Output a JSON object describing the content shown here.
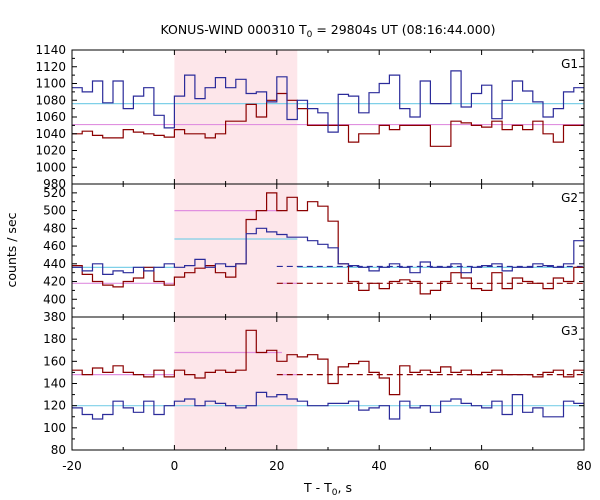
{
  "chart_data": {
    "type": "line",
    "title_main": "KONUS-WIND 000310 T",
    "title_sub": "0",
    "title_rest": " = 29804s UT (08:16:44.000)",
    "xlabel_main": "T - T",
    "xlabel_sub": "0",
    "xlabel_rest": ", s",
    "ylabel": "counts / sec",
    "xlim": [
      -20,
      80
    ],
    "xticks": [
      "-20",
      "0",
      "20",
      "40",
      "60",
      "80"
    ],
    "xtick_values": [
      -20,
      0,
      20,
      40,
      60,
      80
    ],
    "shaded_interval": [
      0,
      24
    ],
    "colors": {
      "series_a": "#2b2b9a",
      "series_b": "#8b0000",
      "fit_a": "#7fd0e8",
      "fit_b": "#e090e0",
      "shade": "#fde6ea"
    },
    "panels": [
      {
        "label": "G1",
        "ylim": [
          980,
          1140
        ],
        "yticks": [
          "980",
          "1000",
          "1020",
          "1040",
          "1060",
          "1080",
          "1100",
          "1120",
          "1140"
        ],
        "ytick_values": [
          980,
          1000,
          1020,
          1040,
          1060,
          1080,
          1100,
          1120,
          1140
        ],
        "bin_width": 2,
        "x_start": -20,
        "series_a_values": [
          1095,
          1090,
          1103,
          1077,
          1103,
          1070,
          1085,
          1095,
          1062,
          1047,
          1085,
          1110,
          1082,
          1095,
          1107,
          1095,
          1105,
          1088,
          1090,
          1078,
          1108,
          1057,
          1080,
          1070,
          1065,
          1042,
          1087,
          1085,
          1065,
          1089,
          1100,
          1110,
          1070,
          1060,
          1103,
          1076,
          1076,
          1115,
          1072,
          1088,
          1098,
          1058,
          1080,
          1103,
          1091,
          1078,
          1060,
          1070,
          1090,
          1095
        ],
        "series_b_values": [
          1040,
          1043,
          1038,
          1035,
          1035,
          1045,
          1042,
          1040,
          1038,
          1036,
          1045,
          1040,
          1040,
          1035,
          1040,
          1055,
          1055,
          1075,
          1060,
          1080,
          1088,
          1080,
          1070,
          1050,
          1050,
          1050,
          1050,
          1030,
          1040,
          1040,
          1050,
          1045,
          1050,
          1050,
          1050,
          1025,
          1025,
          1055,
          1053,
          1050,
          1048,
          1055,
          1045,
          1050,
          1045,
          1055,
          1040,
          1030,
          1050,
          1050
        ],
        "fit_a": [
          {
            "x": [
              -20,
              80
            ],
            "y": 1076
          }
        ],
        "fit_b": [
          {
            "x": [
              -20,
              80
            ],
            "y": 1051
          }
        ],
        "dashed_a": null,
        "dashed_b": null
      },
      {
        "label": "G2",
        "ylim": [
          380,
          530
        ],
        "yticks": [
          "380",
          "400",
          "420",
          "440",
          "460",
          "480",
          "500",
          "520"
        ],
        "ytick_values": [
          380,
          400,
          420,
          440,
          460,
          480,
          500,
          520
        ],
        "bin_width": 2,
        "x_start": -20,
        "series_a_values": [
          436,
          432,
          440,
          428,
          432,
          430,
          436,
          432,
          436,
          440,
          436,
          438,
          445,
          436,
          440,
          437,
          440,
          474,
          480,
          476,
          473,
          470,
          470,
          466,
          462,
          458,
          440,
          438,
          436,
          432,
          436,
          440,
          436,
          430,
          442,
          436,
          436,
          440,
          430,
          436,
          438,
          440,
          432,
          436,
          436,
          440,
          438,
          436,
          440,
          466
        ],
        "series_b_values": [
          438,
          428,
          420,
          416,
          414,
          420,
          424,
          436,
          420,
          416,
          425,
          430,
          435,
          438,
          430,
          425,
          440,
          490,
          500,
          520,
          500,
          515,
          500,
          510,
          505,
          488,
          440,
          420,
          410,
          418,
          412,
          420,
          422,
          420,
          406,
          410,
          420,
          430,
          424,
          412,
          410,
          430,
          412,
          424,
          420,
          418,
          412,
          424,
          420,
          436
        ],
        "fit_a": [
          {
            "x": [
              -20,
              0
            ],
            "y": 436
          },
          {
            "x": [
              0,
              24
            ],
            "y": 468
          },
          {
            "x": [
              24,
              80
            ],
            "y": 436
          }
        ],
        "fit_b": [
          {
            "x": [
              -20,
              0
            ],
            "y": 418
          },
          {
            "x": [
              0,
              21
            ],
            "y": 500
          },
          {
            "x": [
              21,
              24
            ],
            "y": 418
          }
        ],
        "dashed_a": {
          "x": [
            20,
            80
          ],
          "y": 437
        },
        "dashed_b": {
          "x": [
            20,
            80
          ],
          "y": 418
        }
      },
      {
        "label": "G3",
        "ylim": [
          80,
          200
        ],
        "yticks": [
          "80",
          "100",
          "120",
          "140",
          "160",
          "180"
        ],
        "ytick_values": [
          80,
          100,
          120,
          140,
          160,
          180
        ],
        "bin_width": 2,
        "x_start": -20,
        "series_a_values": [
          118,
          112,
          108,
          112,
          124,
          118,
          114,
          124,
          112,
          120,
          124,
          126,
          120,
          124,
          122,
          120,
          118,
          120,
          132,
          128,
          130,
          126,
          124,
          120,
          120,
          122,
          122,
          124,
          116,
          118,
          120,
          108,
          124,
          118,
          120,
          114,
          124,
          126,
          122,
          120,
          118,
          124,
          112,
          130,
          114,
          118,
          110,
          110,
          124,
          122
        ],
        "series_b_values": [
          152,
          148,
          154,
          150,
          156,
          150,
          148,
          146,
          152,
          146,
          152,
          148,
          145,
          150,
          152,
          150,
          152,
          188,
          168,
          170,
          160,
          166,
          164,
          166,
          162,
          140,
          155,
          158,
          160,
          150,
          145,
          130,
          156,
          150,
          152,
          150,
          155,
          150,
          152,
          148,
          150,
          152,
          148,
          148,
          148,
          146,
          150,
          152,
          146,
          152
        ],
        "fit_a": [
          {
            "x": [
              -20,
              80
            ],
            "y": 120
          }
        ],
        "fit_b": [
          {
            "x": [
              -20,
              0
            ],
            "y": 148
          },
          {
            "x": [
              0,
              21
            ],
            "y": 168
          },
          {
            "x": [
              21,
              24
            ],
            "y": 148
          }
        ],
        "dashed_a": null,
        "dashed_b": {
          "x": [
            20,
            80
          ],
          "y": 148
        }
      }
    ]
  }
}
